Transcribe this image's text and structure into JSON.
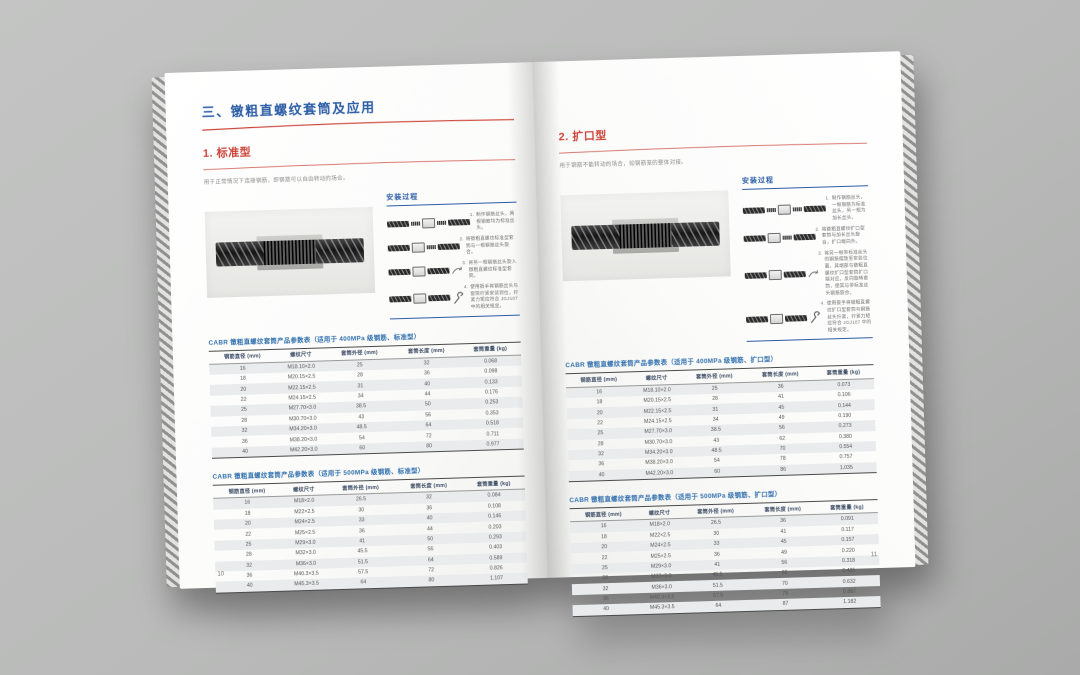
{
  "meta": {
    "background_color": "#bcbdbc",
    "accent_blue": "#2b5ca6",
    "accent_red": "#cd4338",
    "table_title_blue": "#2f6fad"
  },
  "left_page": {
    "page_number": "10",
    "chapter_title": "三、镦粗直螺纹套筒及应用",
    "section": {
      "heading": "1. 标准型",
      "description": "用于正常情况下连接钢筋，即钢筋可以自由转动的场合。"
    },
    "install": {
      "heading": "安装过程",
      "steps": [
        "制作钢筋丝头，两根钢筋均为标准丝头。",
        "将镦粗直螺纹标准型套筒与一根钢筋丝头旋合。",
        "将另一根钢筋丝头旋入镦粗直螺纹标准型套筒。",
        "使用扳手将钢筋丝头与套筒拧紧安装到位，拧紧力矩应符合 JGJ107 中的相关规定。"
      ]
    },
    "tables": [
      {
        "title": "CABR 镦粗直螺纹套筒产品参数表（适用于 400MPa 级钢筋、标准型）",
        "headers": [
          "钢筋直径 (mm)",
          "螺纹尺寸",
          "套筒外径 (mm)",
          "套筒长度 (mm)",
          "套筒重量 (kg)"
        ],
        "rows": [
          [
            "16",
            "M18.10×2.0",
            "25",
            "32",
            "0.068"
          ],
          [
            "18",
            "M20.15×2.5",
            "28",
            "36",
            "0.098"
          ],
          [
            "20",
            "M22.15×2.5",
            "31",
            "40",
            "0.133"
          ],
          [
            "22",
            "M24.15×2.5",
            "34",
            "44",
            "0.176"
          ],
          [
            "25",
            "M27.70×3.0",
            "38.5",
            "50",
            "0.253"
          ],
          [
            "28",
            "M30.70×3.0",
            "43",
            "56",
            "0.353"
          ],
          [
            "32",
            "M34.20×3.0",
            "48.5",
            "64",
            "0.518"
          ],
          [
            "36",
            "M38.20×3.0",
            "54",
            "72",
            "0.711"
          ],
          [
            "40",
            "M42.20×3.0",
            "60",
            "80",
            "0.977"
          ]
        ]
      },
      {
        "title": "CABR 镦粗直螺纹套筒产品参数表（适用于 500MPa 级钢筋、标准型）",
        "headers": [
          "钢筋直径 (mm)",
          "螺纹尺寸",
          "套筒外径 (mm)",
          "套筒长度 (mm)",
          "套筒重量 (kg)"
        ],
        "rows": [
          [
            "16",
            "M18×2.0",
            "26.5",
            "32",
            "0.084"
          ],
          [
            "18",
            "M22×2.5",
            "30",
            "36",
            "0.108"
          ],
          [
            "20",
            "M24×2.5",
            "33",
            "40",
            "0.146"
          ],
          [
            "22",
            "M25×2.5",
            "36",
            "44",
            "0.203"
          ],
          [
            "25",
            "M29×3.0",
            "41",
            "50",
            "0.293"
          ],
          [
            "28",
            "M32×3.0",
            "45.5",
            "56",
            "0.403"
          ],
          [
            "32",
            "M36×3.0",
            "51.5",
            "64",
            "0.589"
          ],
          [
            "36",
            "M40.3×3.5",
            "57.5",
            "72",
            "0.826"
          ],
          [
            "40",
            "M45.3×3.5",
            "64",
            "80",
            "1.107"
          ]
        ]
      }
    ]
  },
  "right_page": {
    "page_number": "11",
    "section": {
      "heading": "2. 扩口型",
      "description": "用于钢筋不能转动的场合，如钢筋笼的整体对接。"
    },
    "install": {
      "heading": "安装过程",
      "steps": [
        "制作钢筋丝头，一根钢筋为标准丝头，另一根为加长丝头。",
        "将镦粗直螺纹扩口型套筒与加长丝头旋合，扩口端向外。",
        "将另一根带标准丝头的钢筋摆放至安装位置，其端部与镦粗直螺纹扩口型套筒扩口端对应，反向旋转套筒，使其与带标准丝头钢筋旋合。",
        "使用扳手将镦粗直螺纹扩口型套筒与钢筋丝头拧紧，拧紧力矩应符合 JGJ107 中的相关规定。"
      ]
    },
    "tables": [
      {
        "title": "CABR 镦粗直螺纹套筒产品参数表（适用于 400MPa 级钢筋、扩口型）",
        "headers": [
          "钢筋直径 (mm)",
          "螺纹尺寸",
          "套筒外径 (mm)",
          "套筒长度 (mm)",
          "套筒重量 (kg)"
        ],
        "rows": [
          [
            "16",
            "M18.10×2.0",
            "25",
            "36",
            "0.073"
          ],
          [
            "18",
            "M20.15×2.5",
            "28",
            "41",
            "0.106"
          ],
          [
            "20",
            "M22.15×2.5",
            "31",
            "45",
            "0.144"
          ],
          [
            "22",
            "M24.15×2.5",
            "34",
            "49",
            "0.190"
          ],
          [
            "25",
            "M27.70×3.0",
            "38.5",
            "56",
            "0.273"
          ],
          [
            "28",
            "M30.70×3.0",
            "43",
            "62",
            "0.380"
          ],
          [
            "32",
            "M34.20×3.0",
            "48.5",
            "70",
            "0.554"
          ],
          [
            "36",
            "M38.20×3.0",
            "54",
            "78",
            "0.757"
          ],
          [
            "40",
            "M42.20×3.0",
            "60",
            "86",
            "1.035"
          ]
        ]
      },
      {
        "title": "CABR 镦粗直螺纹套筒产品参数表（适用于 500MPa 级钢筋、扩口型）",
        "headers": [
          "钢筋直径 (mm)",
          "螺纹尺寸",
          "套筒外径 (mm)",
          "套筒长度 (mm)",
          "套筒重量 (kg)"
        ],
        "rows": [
          [
            "16",
            "M18×2.0",
            "26.5",
            "36",
            "0.091"
          ],
          [
            "18",
            "M22×2.5",
            "30",
            "41",
            "0.117"
          ],
          [
            "20",
            "M24×2.5",
            "33",
            "45",
            "0.157"
          ],
          [
            "22",
            "M25×2.5",
            "36",
            "49",
            "0.220"
          ],
          [
            "25",
            "M29×3.0",
            "41",
            "56",
            "0.318"
          ],
          [
            "28",
            "M32×3.0",
            "45.5",
            "62",
            "0.435"
          ],
          [
            "32",
            "M36×3.0",
            "51.5",
            "70",
            "0.632"
          ],
          [
            "36",
            "M40.3×3.5",
            "57.5",
            "79",
            "0.887"
          ],
          [
            "40",
            "M45.3×3.5",
            "64",
            "87",
            "1.182"
          ]
        ]
      }
    ]
  }
}
